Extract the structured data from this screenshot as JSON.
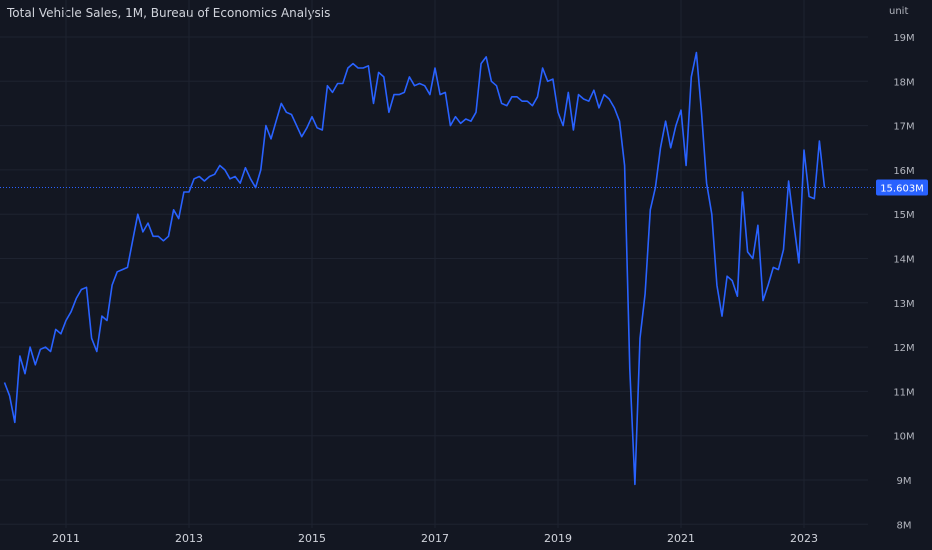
{
  "header": {
    "title": "Total Vehicle Sales, 1M, Bureau of Economics Analysis",
    "unit_label": "unit"
  },
  "colors": {
    "background": "#131722",
    "line": "#2962ff",
    "grid": "#1e2330",
    "text": "#b2b5be",
    "badge": "#2962ff"
  },
  "last_value_label": "15.603M",
  "chart_data": {
    "type": "line",
    "title": "Total Vehicle Sales, 1M, Bureau of Economics Analysis",
    "ylabel": "unit",
    "xlim": [
      2010.0,
      2023.7
    ],
    "ylim": [
      8,
      19.2
    ],
    "y_ticks": [
      {
        "value": 19,
        "label": "19M"
      },
      {
        "value": 18,
        "label": "18M"
      },
      {
        "value": 17,
        "label": "17M"
      },
      {
        "value": 16,
        "label": "16M"
      },
      {
        "value": 15,
        "label": "15M"
      },
      {
        "value": 14,
        "label": "14M"
      },
      {
        "value": 13,
        "label": "13M"
      },
      {
        "value": 12,
        "label": "12M"
      },
      {
        "value": 11,
        "label": "11M"
      },
      {
        "value": 10,
        "label": "10M"
      },
      {
        "value": 9,
        "label": "9M"
      },
      {
        "value": 8,
        "label": "8M"
      }
    ],
    "x_ticks": [
      {
        "value": 2011,
        "label": "2011"
      },
      {
        "value": 2013,
        "label": "2013"
      },
      {
        "value": 2015,
        "label": "2015"
      },
      {
        "value": 2017,
        "label": "2017"
      },
      {
        "value": 2019,
        "label": "2019"
      },
      {
        "value": 2021,
        "label": "2021"
      },
      {
        "value": 2023,
        "label": "2023"
      }
    ],
    "last_value": 15.603,
    "series": [
      {
        "x": [
          2010.0,
          2010.083,
          2010.167,
          2010.25,
          2010.333,
          2010.417,
          2010.5,
          2010.583,
          2010.667,
          2010.75,
          2010.833,
          2010.917,
          2011.0,
          2011.083,
          2011.167,
          2011.25,
          2011.333,
          2011.417,
          2011.5,
          2011.583,
          2011.667,
          2011.75,
          2011.833,
          2011.917,
          2012.0,
          2012.083,
          2012.167,
          2012.25,
          2012.333,
          2012.417,
          2012.5,
          2012.583,
          2012.667,
          2012.75,
          2012.833,
          2012.917,
          2013.0,
          2013.083,
          2013.167,
          2013.25,
          2013.333,
          2013.417,
          2013.5,
          2013.583,
          2013.667,
          2013.75,
          2013.833,
          2013.917,
          2014.0,
          2014.083,
          2014.167,
          2014.25,
          2014.333,
          2014.417,
          2014.5,
          2014.583,
          2014.667,
          2014.75,
          2014.833,
          2014.917,
          2015.0,
          2015.083,
          2015.167,
          2015.25,
          2015.333,
          2015.417,
          2015.5,
          2015.583,
          2015.667,
          2015.75,
          2015.833,
          2015.917,
          2016.0,
          2016.083,
          2016.167,
          2016.25,
          2016.333,
          2016.417,
          2016.5,
          2016.583,
          2016.667,
          2016.75,
          2016.833,
          2016.917,
          2017.0,
          2017.083,
          2017.167,
          2017.25,
          2017.333,
          2017.417,
          2017.5,
          2017.583,
          2017.667,
          2017.75,
          2017.833,
          2017.917,
          2018.0,
          2018.083,
          2018.167,
          2018.25,
          2018.333,
          2018.417,
          2018.5,
          2018.583,
          2018.667,
          2018.75,
          2018.833,
          2018.917,
          2019.0,
          2019.083,
          2019.167,
          2019.25,
          2019.333,
          2019.417,
          2019.5,
          2019.583,
          2019.667,
          2019.75,
          2019.833,
          2019.917,
          2020.0,
          2020.083,
          2020.167,
          2020.25,
          2020.333,
          2020.417,
          2020.5,
          2020.583,
          2020.667,
          2020.75,
          2020.833,
          2020.917,
          2021.0,
          2021.083,
          2021.167,
          2021.25,
          2021.333,
          2021.417,
          2021.5,
          2021.583,
          2021.667,
          2021.75,
          2021.833,
          2021.917,
          2022.0,
          2022.083,
          2022.167,
          2022.25,
          2022.333,
          2022.417,
          2022.5,
          2022.583,
          2022.667,
          2022.75,
          2022.833,
          2022.917,
          2023.0,
          2023.083,
          2023.167,
          2023.25,
          2023.333
        ],
        "y": [
          11.2,
          10.9,
          10.3,
          11.8,
          11.4,
          12.0,
          11.6,
          11.95,
          12.0,
          11.9,
          12.4,
          12.3,
          12.6,
          12.8,
          13.1,
          13.3,
          13.35,
          12.2,
          11.9,
          12.7,
          12.6,
          13.4,
          13.7,
          13.75,
          13.8,
          14.4,
          15.0,
          14.6,
          14.8,
          14.5,
          14.5,
          14.4,
          14.5,
          15.1,
          14.9,
          15.5,
          15.5,
          15.8,
          15.85,
          15.75,
          15.85,
          15.9,
          16.1,
          16.0,
          15.8,
          15.85,
          15.7,
          16.05,
          15.8,
          15.6,
          16.0,
          17.0,
          16.7,
          17.1,
          17.5,
          17.3,
          17.25,
          17.0,
          16.75,
          16.95,
          17.2,
          16.95,
          16.9,
          17.9,
          17.75,
          17.95,
          17.95,
          18.3,
          18.4,
          18.3,
          18.3,
          18.35,
          17.5,
          18.2,
          18.1,
          17.3,
          17.7,
          17.7,
          17.75,
          18.1,
          17.9,
          17.95,
          17.9,
          17.7,
          18.3,
          17.7,
          17.75,
          17.0,
          17.2,
          17.05,
          17.15,
          17.1,
          17.3,
          18.4,
          18.55,
          18.0,
          17.9,
          17.5,
          17.45,
          17.65,
          17.65,
          17.55,
          17.55,
          17.45,
          17.65,
          18.3,
          18.0,
          18.05,
          17.3,
          17.0,
          17.75,
          16.9,
          17.7,
          17.6,
          17.55,
          17.8,
          17.4,
          17.7,
          17.6,
          17.4,
          17.1,
          16.1,
          11.5,
          8.9,
          12.2,
          13.2,
          15.1,
          15.6,
          16.5,
          17.1,
          16.5,
          17.0,
          17.35,
          16.1,
          18.1,
          18.65,
          17.3,
          15.7,
          15.0,
          13.4,
          12.7,
          13.6,
          13.5,
          13.15,
          15.5,
          14.15,
          14.0,
          14.75,
          13.05,
          13.4,
          13.8,
          13.75,
          14.2,
          15.75,
          14.8,
          13.9,
          16.45,
          15.4,
          15.35,
          16.65,
          15.6
        ]
      }
    ]
  }
}
